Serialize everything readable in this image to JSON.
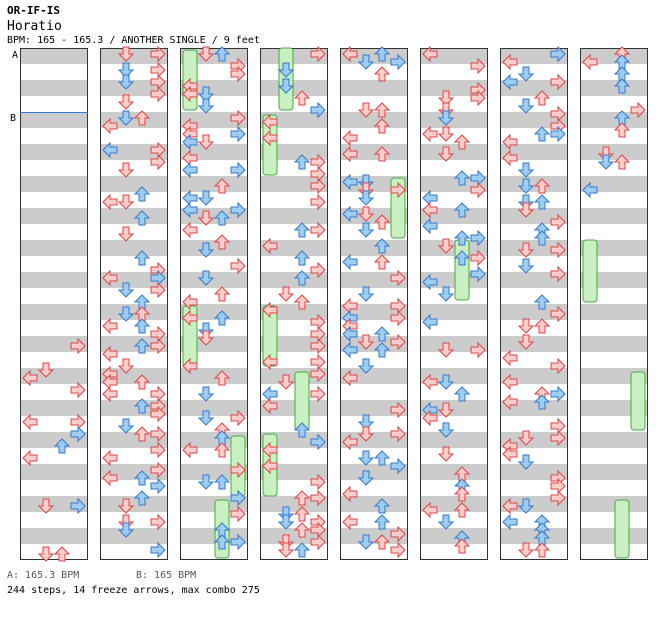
{
  "header": {
    "song_id": "OR-IF-IS",
    "title": "Horatio",
    "info": "BPM: 165 - 165.3 / ANOTHER SINGLE / 9 feet"
  },
  "markers": {
    "a": "A",
    "b": "B"
  },
  "footer": {
    "bpm_a": "A: 165.3 BPM",
    "bpm_b": "B: 165 BPM",
    "summary": "244 steps, 14 freeze arrows, max combo 275"
  },
  "colors": {
    "stripe": "#cccccc",
    "left_right_arrow_fill": "#ffcccc",
    "left_right_arrow_stroke": "#dd4444",
    "up_down_arrow_fill": "#9fcdf2",
    "up_down_arrow_stroke": "#3377cc",
    "freeze_fill": "#c8f0c0",
    "freeze_stroke": "#44aa44",
    "bpm_line": "#3377cc"
  },
  "arrow_colors": {
    "left": "red",
    "right": "red",
    "up": "red",
    "down": "red",
    "left_blue": "blue"
  },
  "notes": [
    [
      [
        "L",
        2,
        7.5
      ],
      [
        "R",
        5.8,
        7.5
      ],
      [
        "U",
        8.2,
        8.7
      ],
      [
        "L",
        8.8,
        4.2
      ],
      [
        "R",
        9.3,
        12.8
      ],
      [
        "D",
        10,
        12
      ],
      [
        "D",
        11.8,
        4.2
      ],
      [
        "L",
        12.5,
        7.5
      ],
      [
        "U",
        13.2,
        8.7
      ],
      [
        "R",
        14.5,
        12.8
      ],
      [
        "D",
        15.2,
        4.2
      ],
      [
        "L",
        16,
        4.2
      ],
      [
        "R",
        16.5,
        12.2
      ],
      [
        "D",
        17.3,
        7.5
      ],
      [
        "U",
        17.3,
        8.7
      ]
    ],
    [
      [
        "L",
        0.6,
        4.2
      ],
      [
        "U",
        0.3,
        12.8
      ],
      [
        "D",
        1.5,
        12.8
      ],
      [
        "D",
        1.5,
        7.5
      ],
      [
        "U",
        1.8,
        8.7
      ],
      [
        "U",
        2.5,
        12.8
      ],
      [
        "D",
        4,
        12.8
      ],
      [
        "R",
        5.5,
        7.5
      ],
      [
        "D",
        5.8,
        4.2
      ],
      [
        "U",
        8,
        8.7
      ],
      [
        "R",
        8.2,
        12.8
      ],
      [
        "D",
        9,
        12.8
      ],
      [
        "L",
        9.3,
        4.2
      ],
      [
        "D",
        10.5,
        4.2
      ],
      [
        "U",
        11,
        8.7
      ],
      [
        "L",
        13,
        4.2
      ],
      [
        "R",
        13.4,
        7.5
      ],
      [
        "D",
        14,
        12.8
      ],
      [
        "D",
        14,
        4.2
      ],
      [
        "D",
        16,
        7.5
      ],
      [
        "U",
        16.2,
        8.7
      ],
      [
        "D",
        16.8,
        12.8
      ],
      [
        "U",
        17.4,
        8.7
      ]
    ]
  ]
}
